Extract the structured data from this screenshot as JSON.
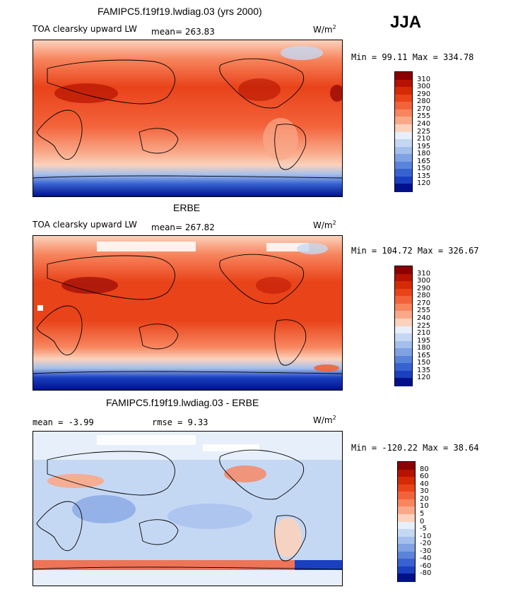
{
  "season": "JJA",
  "panels": [
    {
      "title": "FAMIPC5.f19f19.lwdiag.03 (yrs 2000)",
      "variable": "TOA clearsky upward LW",
      "mean": "mean= 263.83",
      "units": "W/m",
      "units_exp": "2",
      "minmax": "Min =  99.11 Max = 334.78",
      "colorbar": {
        "labels": [
          "310",
          "300",
          "290",
          "280",
          "270",
          "255",
          "240",
          "225",
          "210",
          "195",
          "180",
          "165",
          "150",
          "135",
          "120"
        ],
        "colors": [
          "#8b0000",
          "#b51200",
          "#d42a05",
          "#e9431a",
          "#f3633b",
          "#f7855e",
          "#f9a98a",
          "#fbd2bc",
          "#e6effa",
          "#c5d8f3",
          "#a4bfec",
          "#7fa2e3",
          "#5a84da",
          "#3763d1",
          "#1a40c0",
          "#00118b"
        ]
      }
    },
    {
      "title": "ERBE",
      "variable": "TOA clearsky upward LW",
      "mean": "mean= 267.82",
      "units": "W/m",
      "units_exp": "2",
      "minmax": "Min = 104.72 Max = 326.67",
      "colorbar": {
        "labels": [
          "310",
          "300",
          "290",
          "280",
          "270",
          "255",
          "240",
          "225",
          "210",
          "195",
          "180",
          "165",
          "150",
          "135",
          "120"
        ],
        "colors": [
          "#8b0000",
          "#b51200",
          "#d42a05",
          "#e9431a",
          "#f3633b",
          "#f7855e",
          "#f9a98a",
          "#fbd2bc",
          "#e6effa",
          "#c5d8f3",
          "#a4bfec",
          "#7fa2e3",
          "#5a84da",
          "#3763d1",
          "#1a40c0",
          "#00118b"
        ]
      }
    },
    {
      "title": "FAMIPC5.f19f19.lwdiag.03 - ERBE",
      "mean": "mean =   -3.99",
      "rmse": "rmse =    9.33",
      "units": "W/m",
      "units_exp": "2",
      "minmax": "Min = -120.22 Max =  38.64",
      "colorbar": {
        "labels": [
          "80",
          "60",
          "40",
          "30",
          "20",
          "10",
          "5",
          "0",
          "-5",
          "-10",
          "-20",
          "-30",
          "-40",
          "-60",
          "-80"
        ],
        "colors": [
          "#8b0000",
          "#b51200",
          "#d42a05",
          "#e9431a",
          "#f3633b",
          "#f7855e",
          "#f9a98a",
          "#fbd2bc",
          "#e6effa",
          "#c5d8f3",
          "#a4bfec",
          "#7fa2e3",
          "#5a84da",
          "#3763d1",
          "#1a40c0",
          "#00118b"
        ]
      }
    }
  ]
}
